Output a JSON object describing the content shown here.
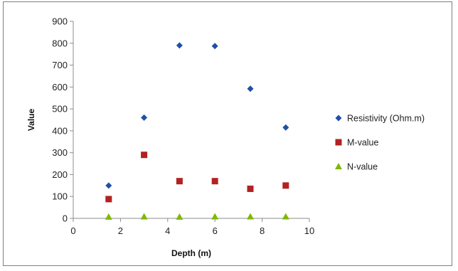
{
  "chart_data": {
    "type": "scatter",
    "title": "",
    "xlabel": "Depth (m)",
    "ylabel": "Value",
    "xlim": [
      0,
      10
    ],
    "ylim": [
      0,
      900
    ],
    "x_ticks": [
      0,
      2,
      4,
      6,
      8,
      10
    ],
    "y_ticks": [
      0,
      100,
      200,
      300,
      400,
      500,
      600,
      700,
      800,
      900
    ],
    "grid": false,
    "legend_position": "right",
    "x": [
      1.5,
      3,
      4.5,
      6,
      7.5,
      9
    ],
    "series": [
      {
        "name": "Resistivity (Ohm.m)",
        "marker": "diamond",
        "color": "#1f4fa8",
        "values": [
          150,
          460,
          790,
          787,
          592,
          415
        ]
      },
      {
        "name": "M-value",
        "marker": "square",
        "color": "#b22222",
        "values": [
          88,
          290,
          170,
          170,
          135,
          150
        ]
      },
      {
        "name": "N-value",
        "marker": "triangle",
        "color": "#7fb800",
        "values": [
          7,
          8,
          7,
          8,
          8,
          8
        ]
      }
    ]
  }
}
